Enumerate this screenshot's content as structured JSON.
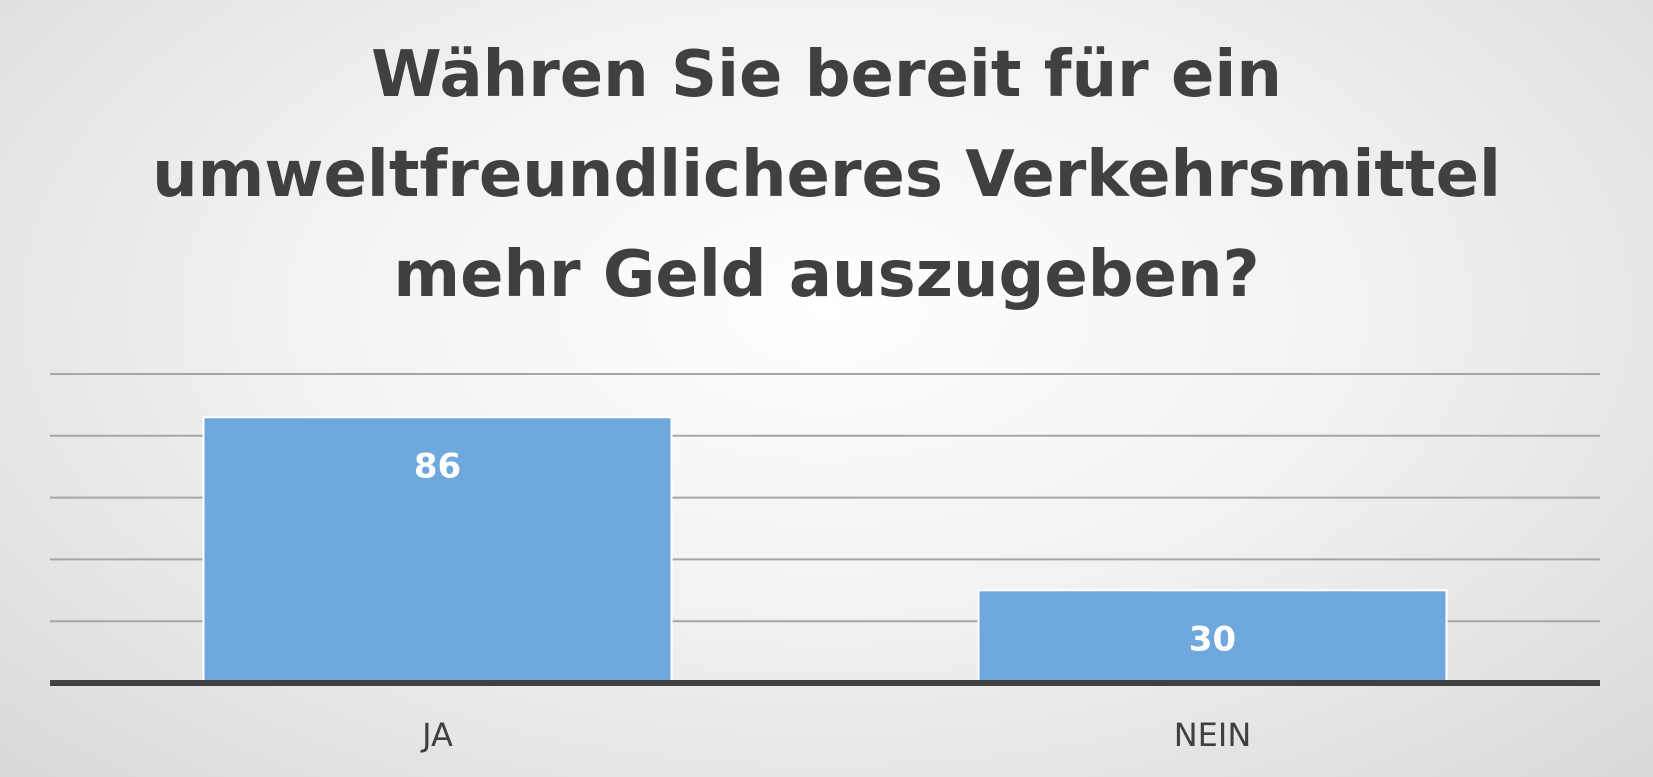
{
  "chart_data": {
    "type": "bar",
    "title_lines": [
      "Währen Sie bereit für ein",
      "umweltfreundlicheres Verkehrsmittel",
      "mehr Geld auszugeben?"
    ],
    "categories": [
      "JA",
      "NEIN"
    ],
    "values": [
      86,
      30
    ],
    "data_labels": [
      "86",
      "30"
    ],
    "xlabel": "",
    "ylabel": "",
    "ylim": [
      0,
      100
    ],
    "gridline_step": 20,
    "grid": true,
    "legend": "none",
    "colors": {
      "bar": "#6fa8dc",
      "bar_border": "#ffffff",
      "data_label": "#ffffff",
      "gridline": "#a6a6a6",
      "baseline": "#404040",
      "title": "#404040",
      "tick_label": "#404040"
    }
  }
}
